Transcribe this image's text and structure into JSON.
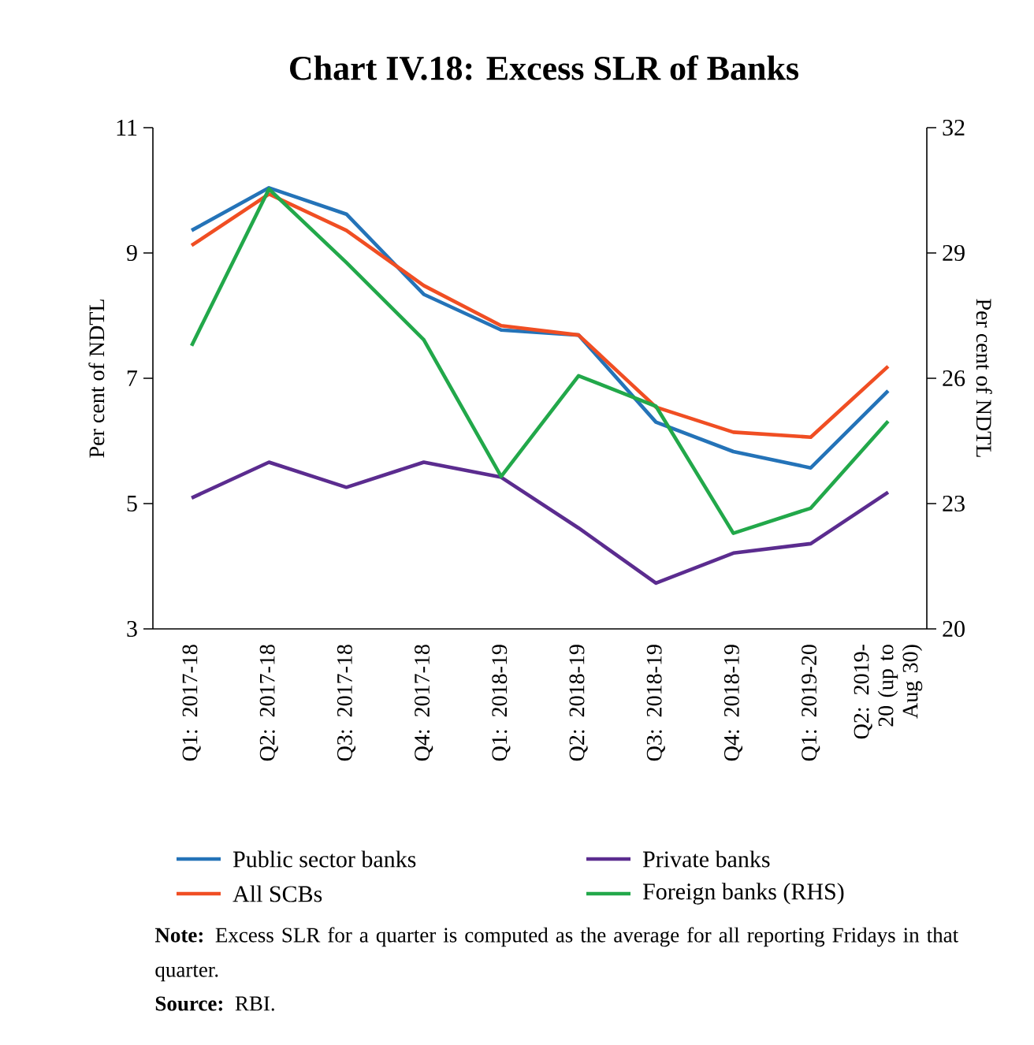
{
  "chart_data": {
    "type": "line",
    "title": "Chart IV.18: Excess SLR of Banks",
    "categories": [
      "Q1: 2017-18",
      "Q2: 2017-18",
      "Q3: 2017-18",
      "Q4: 2017-18",
      "Q1: 2018-19",
      "Q2: 2018-19",
      "Q3: 2018-19",
      "Q4: 2018-19",
      "Q1: 2019-20",
      "Q2: 2019-20 (up to Aug 30)"
    ],
    "ylabel": "Per cent of NDTL",
    "y2label": "Per cent of NDTL",
    "ylim": [
      3,
      11
    ],
    "yticks": [
      3,
      5,
      7,
      9,
      11
    ],
    "y2lim": [
      20,
      32
    ],
    "y2ticks": [
      20,
      23,
      26,
      29,
      32
    ],
    "series": [
      {
        "name": "Public sector banks",
        "color": "#2473b8",
        "values": [
          9.36,
          10.04,
          9.62,
          8.34,
          7.77,
          7.69,
          6.3,
          5.83,
          5.57,
          6.8
        ]
      },
      {
        "name": "All SCBs",
        "color": "#f04e23",
        "values": [
          9.12,
          9.94,
          9.36,
          8.48,
          7.84,
          7.69,
          6.54,
          6.14,
          6.06,
          7.19
        ]
      },
      {
        "name": "Private banks",
        "color": "#5b2c8f",
        "values": [
          5.09,
          5.66,
          5.26,
          5.66,
          5.42,
          4.61,
          3.73,
          4.21,
          4.36,
          5.18
        ]
      },
      {
        "name": "Foreign banks (RHS)",
        "color": "#22a84a",
        "axis": "y2",
        "values": [
          26.78,
          30.53,
          28.77,
          26.92,
          23.65,
          26.06,
          25.33,
          22.29,
          22.89,
          24.97
        ]
      }
    ],
    "legend": "bottom",
    "marker": "none",
    "line_style": "solid",
    "grid": false,
    "annotations": [
      "**Note:** Excess SLR for a quarter is computed as the average for all reporting Fridays in that quarter.",
      "**Source:** RBI."
    ]
  }
}
